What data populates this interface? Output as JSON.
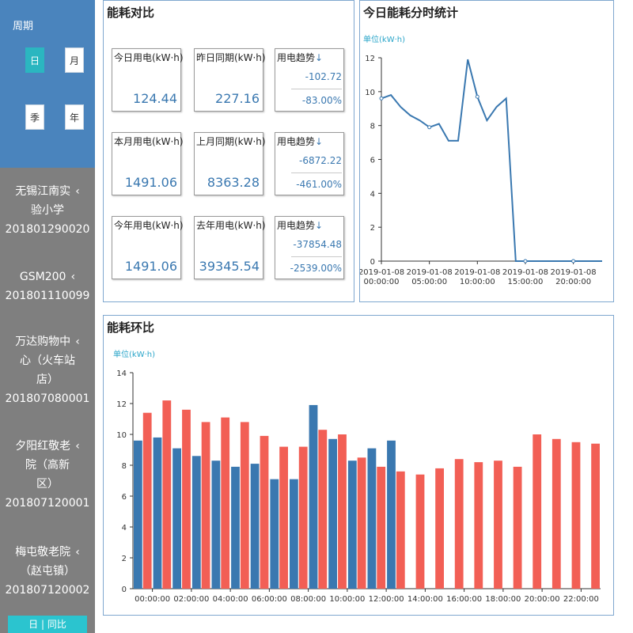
{
  "sidebar": {
    "period_title": "周期",
    "period_buttons": [
      {
        "label": "日",
        "active": true
      },
      {
        "label": "月",
        "active": false
      },
      {
        "label": "季",
        "active": false
      },
      {
        "label": "年",
        "active": false
      }
    ],
    "sites": [
      {
        "name_lines": [
          "无锡江南实",
          "验小学"
        ],
        "code": "201801290020"
      },
      {
        "name_lines": [
          "GSM200"
        ],
        "code": "201801110099"
      },
      {
        "name_lines": [
          "万达购物中",
          "心（火车站",
          "店）"
        ],
        "code": "201807080001"
      },
      {
        "name_lines": [
          "夕阳红敬老",
          "院（高新",
          "区）"
        ],
        "code": "201807120001"
      },
      {
        "name_lines": [
          "梅屯敬老院",
          "（赵屯镇）"
        ],
        "code": "201807120002"
      }
    ],
    "arrow": "‹",
    "bottom_label": "日 | 同比"
  },
  "compare": {
    "title": "能耗对比",
    "cards": [
      {
        "label": "今日用电(kW·h)",
        "value": "124.44"
      },
      {
        "label": "昨日同期(kW·h)",
        "value": "227.16"
      },
      {
        "label": "用电趋势",
        "trend_value": "-102.72",
        "trend_percent": "-83.00%"
      },
      {
        "label": "本月用电(kW·h)",
        "value": "1491.06"
      },
      {
        "label": "上月同期(kW·h)",
        "value": "8363.28"
      },
      {
        "label": "用电趋势",
        "trend_value": "-6872.22",
        "trend_percent": "-461.00%"
      },
      {
        "label": "今年用电(kW·h)",
        "value": "1491.06"
      },
      {
        "label": "去年用电(kW·h)",
        "value": "39345.54"
      },
      {
        "label": "用电趋势",
        "trend_value": "-37854.48",
        "trend_percent": "-2539.00%"
      }
    ],
    "trend_arrow": "↓"
  },
  "chart_data": [
    {
      "type": "line",
      "title": "今日能耗分时统计",
      "unit_label": "单位(kW·h)",
      "x_ticks": [
        "2019-01-08 00:00:00",
        "2019-01-08 05:00:00",
        "2019-01-08 10:00:00",
        "2019-01-08 15:00:00",
        "2019-01-08 20:00:00"
      ],
      "ylim": [
        0,
        12
      ],
      "y_ticks": [
        0,
        2,
        4,
        6,
        8,
        10,
        12
      ],
      "color": "#3a78b0",
      "series": [
        {
          "values": [
            9.6,
            9.8,
            9.1,
            8.6,
            8.3,
            7.9,
            8.1,
            7.1,
            7.1,
            11.9,
            9.7,
            8.3,
            9.1,
            9.6,
            0,
            0,
            0,
            0,
            0,
            0,
            0,
            0,
            0,
            0
          ]
        }
      ]
    },
    {
      "type": "bar",
      "title": "能耗环比",
      "unit_label": "单位(kW·h)",
      "categories": [
        "00:00:00",
        "01:00:00",
        "02:00:00",
        "03:00:00",
        "04:00:00",
        "05:00:00",
        "06:00:00",
        "07:00:00",
        "08:00:00",
        "09:00:00",
        "10:00:00",
        "11:00:00",
        "12:00:00",
        "13:00:00",
        "14:00:00",
        "15:00:00",
        "16:00:00",
        "17:00:00",
        "18:00:00",
        "19:00:00",
        "20:00:00",
        "21:00:00",
        "22:00:00",
        "23:00:00"
      ],
      "x_ticks": [
        "00:00:00",
        "02:00:00",
        "04:00:00",
        "06:00:00",
        "08:00:00",
        "10:00:00",
        "12:00:00",
        "14:00:00",
        "16:00:00",
        "18:00:00",
        "20:00:00",
        "22:00:00"
      ],
      "ylim": [
        0,
        14
      ],
      "y_ticks": [
        0,
        2,
        4,
        6,
        8,
        10,
        12,
        14
      ],
      "series": [
        {
          "color": "#3a78b0",
          "values": [
            9.6,
            9.8,
            9.1,
            8.6,
            8.3,
            7.9,
            8.1,
            7.1,
            7.1,
            11.9,
            9.7,
            8.3,
            9.1,
            9.6,
            null,
            null,
            null,
            null,
            null,
            null,
            null,
            null,
            null,
            null
          ]
        },
        {
          "color": "#f25f55",
          "values": [
            11.4,
            12.2,
            11.6,
            10.8,
            11.1,
            10.8,
            9.9,
            9.2,
            9.2,
            10.3,
            10.0,
            8.5,
            7.9,
            7.6,
            7.4,
            7.8,
            8.4,
            8.2,
            8.3,
            7.9,
            10.0,
            9.7,
            9.5,
            9.4
          ]
        }
      ]
    }
  ]
}
